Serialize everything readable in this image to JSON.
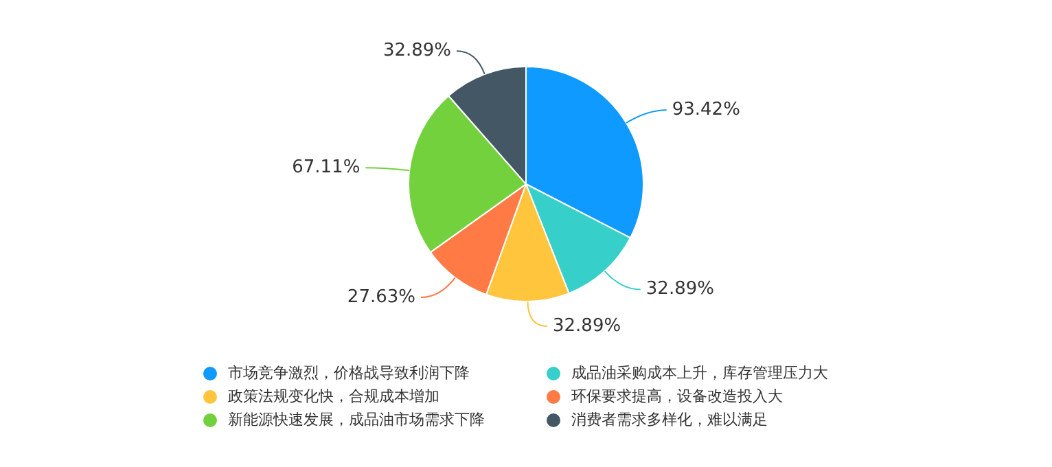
{
  "chart_data": {
    "type": "pie",
    "categories": [
      "市场竞争激烈，价格战导致利润下降",
      "成品油采购成本上升，库存管理压力大",
      "政策法规变化快，合规成本增加",
      "环保要求提高，设备改造投入大",
      "新能源快速发展，成品油市场需求下降",
      "消费者需求多样化，难以满足"
    ],
    "values": [
      93.42,
      32.89,
      32.89,
      27.63,
      67.11,
      32.89
    ],
    "value_labels": [
      "93.42%",
      "32.89%",
      "32.89%",
      "27.63%",
      "67.11%",
      "32.89%"
    ],
    "colors": [
      "#0e9aff",
      "#36cfc9",
      "#ffc53d",
      "#ff7a45",
      "#73d13d",
      "#435764"
    ],
    "legend": "bottom"
  }
}
